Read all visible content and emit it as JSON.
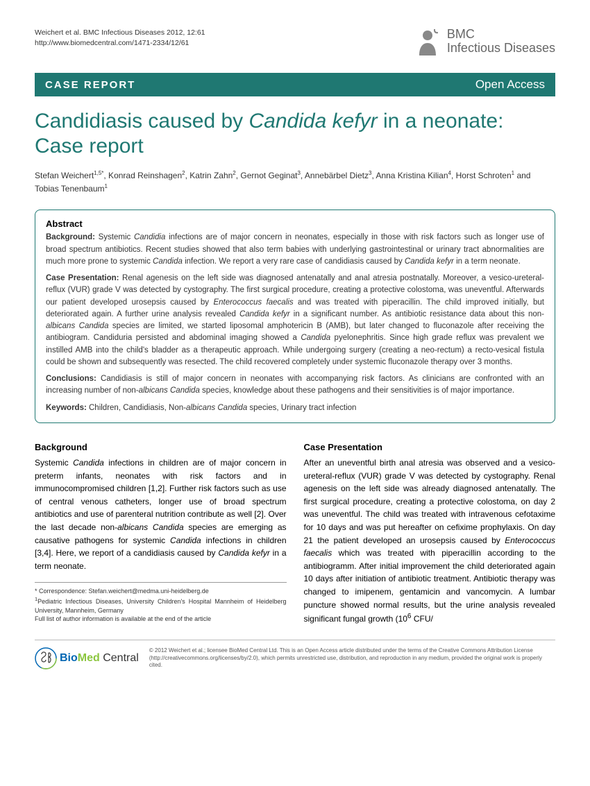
{
  "header": {
    "citation_line1": "Weichert et al. BMC Infectious Diseases 2012, 12:61",
    "citation_line2": "http://www.biomedcentral.com/1471-2334/12/61",
    "journal_bmc": "BMC",
    "journal_name": "Infectious Diseases"
  },
  "banner": {
    "left": "CASE REPORT",
    "right": "Open Access"
  },
  "title": {
    "part1": "Candidiasis caused by ",
    "italic": "Candida kefyr",
    "part2": " in a neonate: Case report"
  },
  "authors": "Stefan Weichert<sup>1,5*</sup>, Konrad Reinshagen<sup>2</sup>, Katrin Zahn<sup>2</sup>, Gernot Geginat<sup>3</sup>, Annebärbel Dietz<sup>3</sup>, Anna Kristina Kilian<sup>4</sup>, Horst Schroten<sup>1</sup> and Tobias Tenenbaum<sup>1</sup>",
  "abstract": {
    "heading": "Abstract",
    "background_label": "Background:",
    "background_text": " Systemic <em>Candidia</em> infections are of major concern in neonates, especially in those with risk factors such as longer use of broad spectrum antibiotics. Recent studies showed that also term babies with underlying gastrointestinal or urinary tract abnormalities are much more prone to systemic <em>Candida</em> infection. We report a very rare case of candidiasis caused by <em>Candida kefyr</em> in a term neonate.",
    "case_label": "Case Presentation:",
    "case_text": " Renal agenesis on the left side was diagnosed antenatally and anal atresia postnatally. Moreover, a vesico-ureteral-reflux (VUR) grade V was detected by cystography. The first surgical procedure, creating a protective colostoma, was uneventful. Afterwards our patient developed urosepsis caused by <em>Enterococcus faecalis</em> and was treated with piperacillin. The child improved initially, but deteriorated again. A further urine analysis revealed <em>Candida kefyr</em> in a significant number. As antibiotic resistance data about this non-<em>albicans Candida</em> species are limited, we started liposomal amphotericin B (AMB), but later changed to fluconazole after receiving the antibiogram. Candiduria persisted and abdominal imaging showed a <em>Candida</em> pyelonephritis. Since high grade reflux was prevalent we instilled AMB into the child's bladder as a therapeutic approach. While undergoing surgery (creating a neo-rectum) a recto-vesical fistula could be shown and subsequently was resected. The child recovered completely under systemic fluconazole therapy over 3 months.",
    "conclusions_label": "Conclusions:",
    "conclusions_text": " Candidiasis is still of major concern in neonates with accompanying risk factors. As clinicians are confronted with an increasing number of non-<em>albicans Candida</em> species, knowledge about these pathogens and their sensitivities is of major importance.",
    "keywords_label": "Keywords:",
    "keywords_text": " Children, Candidiasis, Non-<em>albicans Candida</em> species, Urinary tract infection"
  },
  "body": {
    "background_heading": "Background",
    "background_text": "Systemic <em>Candida</em> infections in children are of major concern in preterm infants, neonates with risk factors and in immunocompromised children [1,2]. Further risk factors such as use of central venous catheters, longer use of broad spectrum antibiotics and use of parenteral nutrition contribute as well [2]. Over the last decade non-<em>albicans Candida</em> species are emerging as causative pathogens for systemic <em>Candida</em> infections in children [3,4]. Here, we report of a candidiasis caused by <em>Candida kefyr</em> in a term neonate.",
    "case_heading": "Case Presentation",
    "case_text": "After an uneventful birth anal atresia was observed and a vesico-ureteral-reflux (VUR) grade V was detected by cystography. Renal agenesis on the left side was already diagnosed antenatally. The first surgical procedure, creating a protective colostoma, on day 2 was uneventful. The child was treated with intravenous cefotaxime for 10 days and was put hereafter on cefixime prophylaxis. On day 21 the patient developed an urosepsis caused by <em>Enterococcus faecalis</em> which was treated with piperacillin according to the antibiogramm. After initial improvement the child deteriorated again 10 days after initiation of antibiotic treatment. Antibiotic therapy was changed to imipenem, gentamicin and vancomycin. A lumbar puncture showed normal results, but the urine analysis revealed significant fungal growth (10<sup>6</sup> CFU/"
  },
  "correspondence": {
    "line1": "* Correspondence: Stefan.weichert@medma.uni-heidelberg.de",
    "line2": "<sup>1</sup>Pediatric Infectious Diseases, University Children's Hospital Mannheim of Heidelberg University, Mannheim, Germany",
    "line3": "Full list of author information is available at the end of the article"
  },
  "footer": {
    "logo_bio": "Bio",
    "logo_med": "Med",
    "logo_central": " Central",
    "license": "© 2012 Weichert et al.; licensee BioMed Central Ltd. This is an Open Access article distributed under the terms of the Creative Commons Attribution License (http://creativecommons.org/licenses/by/2.0), which permits unrestricted use, distribution, and reproduction in any medium, provided the original work is properly cited."
  },
  "colors": {
    "teal": "#1f7872",
    "text": "#333333",
    "bio_blue": "#0066b3",
    "med_green": "#8cc63f"
  }
}
